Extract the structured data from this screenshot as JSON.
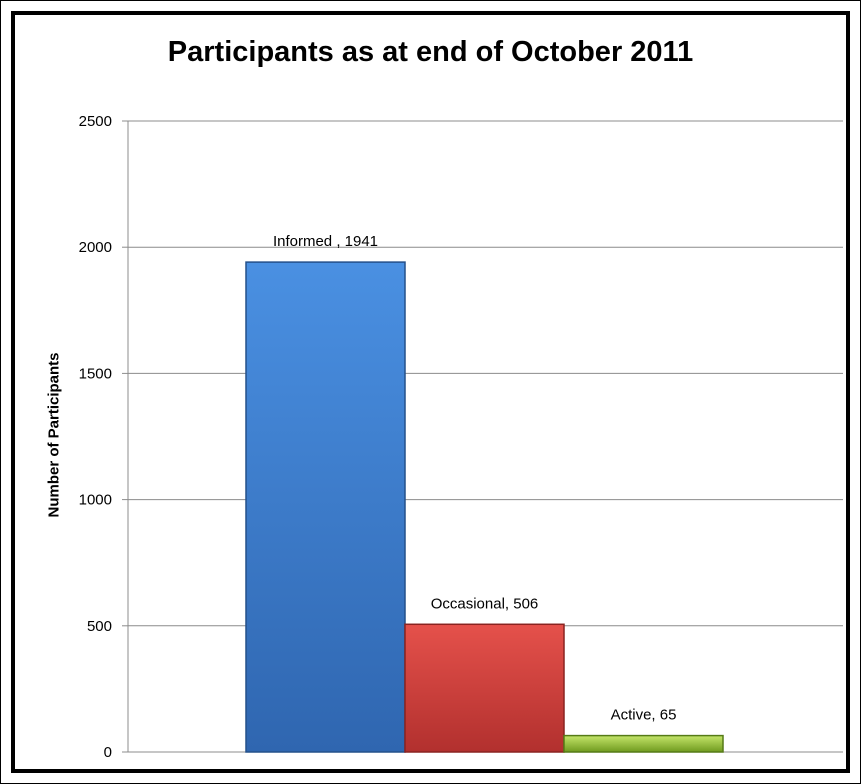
{
  "chart_data": {
    "type": "bar",
    "title": "Participants as at end of October 2011",
    "xlabel": "",
    "ylabel": "Number of Participants",
    "ylim": [
      0,
      2500
    ],
    "yticks": [
      0,
      500,
      1000,
      1500,
      2000,
      2500
    ],
    "grid": true,
    "legend": "none",
    "categories": [
      "Informed",
      "Occasional",
      "Active"
    ],
    "values": [
      1941,
      506,
      65
    ],
    "data_labels": [
      "Informed , 1941",
      "Occasional, 506",
      "Active, 65"
    ],
    "colors": [
      "#3b7dd8",
      "#d63c3a",
      "#a4cc3c"
    ]
  }
}
